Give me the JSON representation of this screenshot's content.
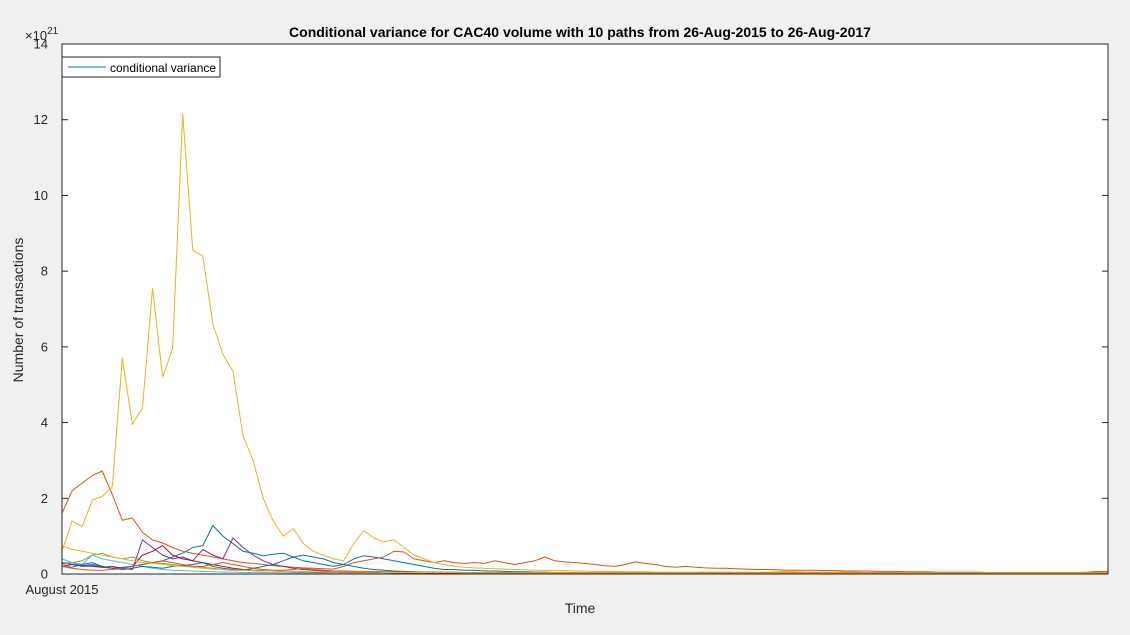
{
  "chart_data": {
    "type": "line",
    "title": "Conditional variance for CAC40 volume with 10 paths from 26-Aug-2015 to 26-Aug-2017",
    "xlabel": "Time",
    "ylabel": "Number of transactions",
    "y_exponent_label": "×10",
    "y_exponent_power": "21",
    "x_tick_labels": [
      {
        "x": 0,
        "label": "August 2015"
      }
    ],
    "xlim": [
      0,
      104
    ],
    "ylim": [
      0,
      14
    ],
    "yticks": [
      0,
      2,
      4,
      6,
      8,
      10,
      12,
      14
    ],
    "grid": false,
    "legend": {
      "entries": [
        "conditional variance"
      ],
      "placement": "top-left"
    },
    "series": [
      {
        "color": "#0072BD",
        "values": [
          0.28,
          0.3,
          0.22,
          0.25,
          0.2,
          0.15,
          0.18,
          0.2,
          0.25,
          0.3,
          0.35,
          0.45,
          0.55,
          0.7,
          0.75,
          1.28,
          1.0,
          0.8,
          0.6,
          0.55,
          0.48,
          0.52,
          0.55,
          0.45,
          0.35,
          0.3,
          0.25,
          0.2,
          0.25,
          0.4,
          0.48,
          0.45,
          0.4,
          0.35,
          0.3,
          0.25,
          0.2,
          0.15,
          0.12,
          0.12,
          0.1,
          0.1,
          0.08,
          0.08,
          0.07,
          0.06,
          0.06,
          0.05,
          0.05,
          0.04,
          0.04,
          0.04,
          0.03,
          0.03,
          0.03,
          0.03,
          0.03,
          0.02,
          0.02,
          0.02,
          0.02,
          0.02,
          0.02,
          0.02,
          0.02,
          0.02,
          0.02,
          0.02,
          0.02,
          0.02,
          0.02,
          0.02,
          0.02,
          0.02,
          0.02,
          0.02,
          0.02,
          0.02,
          0.02,
          0.02,
          0.02,
          0.02,
          0.02,
          0.02,
          0.02,
          0.02,
          0.02,
          0.02,
          0.02,
          0.02,
          0.02,
          0.02,
          0.02,
          0.02,
          0.02,
          0.02,
          0.02,
          0.02,
          0.02,
          0.02,
          0.02,
          0.02,
          0.02,
          0.02,
          0.02
        ]
      },
      {
        "color": "#D95319",
        "values": [
          1.6,
          2.2,
          2.4,
          2.6,
          2.72,
          2.1,
          1.42,
          1.48,
          1.1,
          0.9,
          0.82,
          0.7,
          0.6,
          0.55,
          0.5,
          0.45,
          0.4,
          0.35,
          0.3,
          0.28,
          0.25,
          0.22,
          0.2,
          0.18,
          0.16,
          0.15,
          0.14,
          0.13,
          0.2,
          0.3,
          0.35,
          0.4,
          0.45,
          0.6,
          0.58,
          0.4,
          0.35,
          0.3,
          0.35,
          0.3,
          0.28,
          0.3,
          0.28,
          0.35,
          0.3,
          0.25,
          0.3,
          0.35,
          0.45,
          0.35,
          0.32,
          0.3,
          0.28,
          0.25,
          0.22,
          0.2,
          0.25,
          0.32,
          0.28,
          0.25,
          0.2,
          0.18,
          0.2,
          0.18,
          0.16,
          0.15,
          0.15,
          0.14,
          0.13,
          0.12,
          0.12,
          0.11,
          0.1,
          0.1,
          0.1,
          0.1,
          0.09,
          0.09,
          0.08,
          0.08,
          0.08,
          0.07,
          0.07,
          0.07,
          0.06,
          0.06,
          0.06,
          0.05,
          0.05,
          0.05,
          0.05,
          0.05,
          0.04,
          0.04,
          0.04,
          0.04,
          0.04,
          0.04,
          0.04,
          0.04,
          0.04,
          0.04,
          0.05,
          0.07,
          0.07
        ]
      },
      {
        "color": "#EDB120",
        "values": [
          0.6,
          1.4,
          1.25,
          1.95,
          2.05,
          2.3,
          5.7,
          3.95,
          4.4,
          7.55,
          5.2,
          5.95,
          12.15,
          8.55,
          8.4,
          6.6,
          5.8,
          5.35,
          3.65,
          3.0,
          2.0,
          1.4,
          1.0,
          1.2,
          0.8,
          0.6,
          0.5,
          0.4,
          0.35,
          0.8,
          1.15,
          0.95,
          0.85,
          0.9,
          0.7,
          0.5,
          0.4,
          0.3,
          0.25,
          0.2,
          0.18,
          0.16,
          0.15,
          0.14,
          0.13,
          0.12,
          0.11,
          0.1,
          0.1,
          0.09,
          0.09,
          0.08,
          0.08,
          0.07,
          0.07,
          0.07,
          0.06,
          0.06,
          0.06,
          0.05,
          0.05,
          0.05,
          0.05,
          0.05,
          0.05,
          0.05,
          0.05,
          0.05,
          0.05,
          0.05,
          0.05,
          0.06,
          0.07,
          0.06,
          0.05,
          0.05,
          0.05,
          0.05,
          0.06,
          0.05,
          0.04,
          0.04,
          0.04,
          0.04,
          0.04,
          0.04,
          0.04,
          0.04,
          0.04,
          0.04,
          0.04,
          0.04,
          0.04,
          0.04,
          0.04,
          0.04,
          0.04,
          0.04,
          0.04,
          0.04,
          0.04,
          0.04,
          0.04,
          0.04,
          0.04
        ]
      },
      {
        "color": "#7E2F8E",
        "values": [
          0.3,
          0.25,
          0.2,
          0.22,
          0.18,
          0.2,
          0.15,
          0.12,
          0.9,
          0.7,
          0.5,
          0.4,
          0.45,
          0.35,
          0.65,
          0.5,
          0.4,
          0.95,
          0.7,
          0.5,
          0.35,
          0.25,
          0.2,
          0.15,
          0.12,
          0.1,
          0.08,
          0.08,
          0.07,
          0.07,
          0.06,
          0.06,
          0.05,
          0.05,
          0.05,
          0.05,
          0.04,
          0.04,
          0.04,
          0.04,
          0.04,
          0.04,
          0.03,
          0.03,
          0.03,
          0.03,
          0.03,
          0.03,
          0.03,
          0.03,
          0.03,
          0.03,
          0.03,
          0.03,
          0.03,
          0.03,
          0.03,
          0.03,
          0.03,
          0.03,
          0.03,
          0.03,
          0.03,
          0.03,
          0.03,
          0.03,
          0.03,
          0.03,
          0.03,
          0.03,
          0.03,
          0.03,
          0.03,
          0.03,
          0.03,
          0.03,
          0.03,
          0.03,
          0.03,
          0.03,
          0.03,
          0.03,
          0.03,
          0.03,
          0.03,
          0.03,
          0.03,
          0.03,
          0.03,
          0.03,
          0.03,
          0.03,
          0.03,
          0.03,
          0.03,
          0.03,
          0.03,
          0.03,
          0.03,
          0.03,
          0.03,
          0.03,
          0.03,
          0.03,
          0.03
        ]
      },
      {
        "color": "#77AC30",
        "values": [
          0.25,
          0.3,
          0.35,
          0.5,
          0.55,
          0.45,
          0.4,
          0.45,
          0.35,
          0.3,
          0.28,
          0.25,
          0.22,
          0.2,
          0.18,
          0.15,
          0.12,
          0.1,
          0.1,
          0.09,
          0.08,
          0.08,
          0.07,
          0.07,
          0.06,
          0.06,
          0.05,
          0.05,
          0.05,
          0.05,
          0.04,
          0.04,
          0.04,
          0.04,
          0.04,
          0.04,
          0.03,
          0.03,
          0.03,
          0.03,
          0.03,
          0.03,
          0.03,
          0.03,
          0.03,
          0.03,
          0.03,
          0.03,
          0.03,
          0.03,
          0.03,
          0.03,
          0.03,
          0.03,
          0.03,
          0.03,
          0.03,
          0.03,
          0.03,
          0.03,
          0.03,
          0.03,
          0.03,
          0.03,
          0.03,
          0.03,
          0.03,
          0.03,
          0.03,
          0.03,
          0.03,
          0.03,
          0.03,
          0.03,
          0.03,
          0.03,
          0.03,
          0.03,
          0.03,
          0.03,
          0.03,
          0.03,
          0.03,
          0.03,
          0.03,
          0.03,
          0.03,
          0.03,
          0.03,
          0.03,
          0.03,
          0.03,
          0.03,
          0.03,
          0.03,
          0.03,
          0.03,
          0.03,
          0.03,
          0.03,
          0.03,
          0.03,
          0.03,
          0.03,
          0.03
        ]
      },
      {
        "color": "#4DBEEE",
        "values": [
          0.4,
          0.3,
          0.25,
          0.5,
          0.4,
          0.35,
          0.3,
          0.25,
          0.2,
          0.15,
          0.12,
          0.1,
          0.09,
          0.08,
          0.07,
          0.06,
          0.05,
          0.05,
          0.04,
          0.04,
          0.04,
          0.04,
          0.03,
          0.03,
          0.03,
          0.03,
          0.03,
          0.03,
          0.03,
          0.03,
          0.03,
          0.03,
          0.03,
          0.03,
          0.03,
          0.03,
          0.03,
          0.03,
          0.03,
          0.03,
          0.03,
          0.03,
          0.03,
          0.03,
          0.03,
          0.03,
          0.03,
          0.03,
          0.03,
          0.03,
          0.03,
          0.03,
          0.03,
          0.03,
          0.03,
          0.03,
          0.03,
          0.03,
          0.03,
          0.03,
          0.03,
          0.03,
          0.03,
          0.03,
          0.03,
          0.03,
          0.03,
          0.03,
          0.03,
          0.03,
          0.03,
          0.03,
          0.03,
          0.03,
          0.03,
          0.03,
          0.03,
          0.03,
          0.03,
          0.03,
          0.03,
          0.03,
          0.03,
          0.03,
          0.03,
          0.03,
          0.03,
          0.03,
          0.03,
          0.03,
          0.03,
          0.03,
          0.03,
          0.03,
          0.03,
          0.03,
          0.03,
          0.03,
          0.03,
          0.03,
          0.03,
          0.03,
          0.03,
          0.03,
          0.03
        ]
      },
      {
        "color": "#A2142F",
        "values": [
          0.2,
          0.25,
          0.22,
          0.2,
          0.18,
          0.15,
          0.15,
          0.2,
          0.5,
          0.6,
          0.75,
          0.5,
          0.4,
          0.35,
          0.3,
          0.25,
          0.2,
          0.15,
          0.12,
          0.1,
          0.09,
          0.08,
          0.07,
          0.06,
          0.06,
          0.05,
          0.05,
          0.05,
          0.04,
          0.04,
          0.04,
          0.04,
          0.04,
          0.03,
          0.03,
          0.03,
          0.03,
          0.03,
          0.03,
          0.03,
          0.03,
          0.03,
          0.03,
          0.03,
          0.03,
          0.03,
          0.03,
          0.03,
          0.03,
          0.03,
          0.03,
          0.03,
          0.03,
          0.03,
          0.03,
          0.03,
          0.03,
          0.03,
          0.03,
          0.03,
          0.03,
          0.03,
          0.03,
          0.03,
          0.03,
          0.03,
          0.03,
          0.03,
          0.03,
          0.03,
          0.03,
          0.03,
          0.03,
          0.03,
          0.03,
          0.03,
          0.03,
          0.03,
          0.03,
          0.03,
          0.03,
          0.03,
          0.03,
          0.03,
          0.03,
          0.03,
          0.03,
          0.03,
          0.03,
          0.03,
          0.03,
          0.03,
          0.03,
          0.03,
          0.03,
          0.03,
          0.03,
          0.03,
          0.03,
          0.03,
          0.03,
          0.03,
          0.03,
          0.03,
          0.03
        ]
      },
      {
        "color": "#0072BD",
        "values": [
          0.2,
          0.18,
          0.25,
          0.3,
          0.2,
          0.15,
          0.12,
          0.15,
          0.2,
          0.18,
          0.15,
          0.2,
          0.22,
          0.25,
          0.3,
          0.2,
          0.15,
          0.12,
          0.1,
          0.15,
          0.2,
          0.25,
          0.35,
          0.45,
          0.5,
          0.45,
          0.4,
          0.3,
          0.25,
          0.2,
          0.15,
          0.12,
          0.1,
          0.08,
          0.07,
          0.06,
          0.05,
          0.05,
          0.04,
          0.04,
          0.04,
          0.04,
          0.03,
          0.03,
          0.03,
          0.03,
          0.03,
          0.03,
          0.03,
          0.03,
          0.03,
          0.03,
          0.03,
          0.03,
          0.03,
          0.03,
          0.03,
          0.03,
          0.03,
          0.03,
          0.03,
          0.03,
          0.03,
          0.03,
          0.03,
          0.03,
          0.03,
          0.03,
          0.03,
          0.03,
          0.03,
          0.03,
          0.03,
          0.03,
          0.03,
          0.03,
          0.03,
          0.03,
          0.03,
          0.03,
          0.03,
          0.03,
          0.03,
          0.03,
          0.03,
          0.03,
          0.03,
          0.03,
          0.03,
          0.03,
          0.03,
          0.03,
          0.03,
          0.03,
          0.03,
          0.03,
          0.03,
          0.03,
          0.03,
          0.03,
          0.03,
          0.03,
          0.03,
          0.03,
          0.03
        ]
      },
      {
        "color": "#D95319",
        "values": [
          0.2,
          0.15,
          0.12,
          0.1,
          0.1,
          0.12,
          0.15,
          0.2,
          0.25,
          0.3,
          0.35,
          0.3,
          0.25,
          0.2,
          0.2,
          0.25,
          0.3,
          0.25,
          0.2,
          0.15,
          0.12,
          0.1,
          0.1,
          0.12,
          0.15,
          0.12,
          0.1,
          0.08,
          0.08,
          0.07,
          0.07,
          0.07,
          0.06,
          0.06,
          0.06,
          0.05,
          0.05,
          0.05,
          0.05,
          0.05,
          0.04,
          0.04,
          0.04,
          0.04,
          0.04,
          0.04,
          0.04,
          0.04,
          0.04,
          0.04,
          0.04,
          0.04,
          0.04,
          0.04,
          0.04,
          0.04,
          0.04,
          0.04,
          0.04,
          0.04,
          0.04,
          0.04,
          0.04,
          0.04,
          0.04,
          0.04,
          0.04,
          0.04,
          0.04,
          0.04,
          0.04,
          0.04,
          0.04,
          0.04,
          0.04,
          0.04,
          0.04,
          0.04,
          0.04,
          0.04,
          0.04,
          0.04,
          0.04,
          0.04,
          0.04,
          0.04,
          0.04,
          0.04,
          0.04,
          0.04,
          0.04,
          0.04,
          0.04,
          0.04,
          0.04,
          0.04,
          0.04,
          0.04,
          0.04,
          0.04,
          0.04,
          0.04,
          0.04,
          0.04,
          0.04
        ]
      },
      {
        "color": "#EDB120",
        "values": [
          0.75,
          0.65,
          0.6,
          0.55,
          0.5,
          0.45,
          0.4,
          0.35,
          0.3,
          0.28,
          0.25,
          0.22,
          0.2,
          0.18,
          0.15,
          0.13,
          0.12,
          0.1,
          0.1,
          0.09,
          0.08,
          0.08,
          0.07,
          0.07,
          0.06,
          0.06,
          0.06,
          0.05,
          0.05,
          0.05,
          0.05,
          0.05,
          0.04,
          0.04,
          0.04,
          0.04,
          0.04,
          0.04,
          0.04,
          0.04,
          0.03,
          0.03,
          0.03,
          0.03,
          0.03,
          0.03,
          0.03,
          0.03,
          0.03,
          0.03,
          0.03,
          0.03,
          0.03,
          0.03,
          0.03,
          0.03,
          0.03,
          0.03,
          0.03,
          0.03,
          0.03,
          0.03,
          0.03,
          0.03,
          0.03,
          0.03,
          0.03,
          0.03,
          0.03,
          0.03,
          0.03,
          0.03,
          0.03,
          0.03,
          0.03,
          0.03,
          0.03,
          0.03,
          0.03,
          0.03,
          0.03,
          0.03,
          0.03,
          0.03,
          0.03,
          0.03,
          0.03,
          0.03,
          0.03,
          0.03,
          0.03,
          0.03,
          0.03,
          0.03,
          0.03,
          0.03,
          0.03,
          0.03,
          0.03,
          0.03,
          0.03,
          0.03,
          0.03,
          0.03,
          0.03
        ]
      }
    ]
  }
}
